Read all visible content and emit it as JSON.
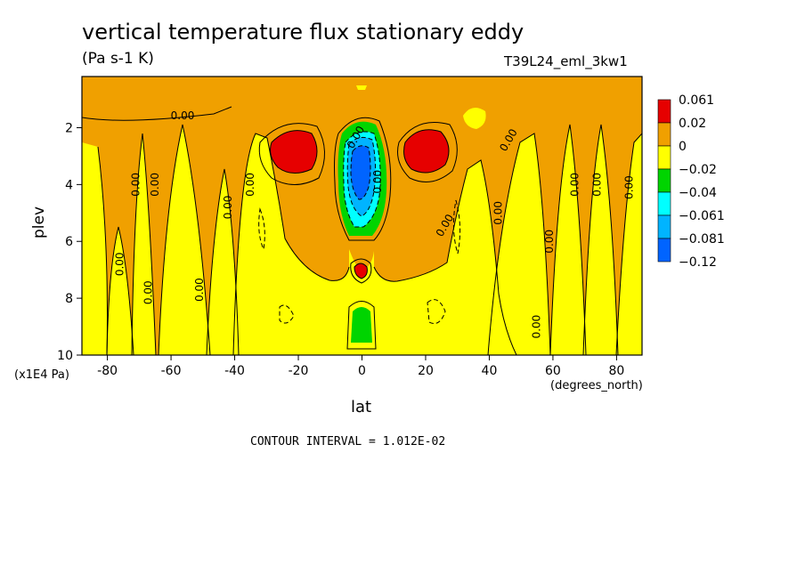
{
  "chart_data": {
    "type": "heatmap",
    "title": "vertical temperature flux stationary eddy",
    "subtitle": "(Pa s-1 K)",
    "run_id": "T39L24_eml_3kw1",
    "xlabel": "lat",
    "ylabel": "plev",
    "x_units": "(degrees_north)",
    "y_scale_note": "(x1E4 Pa)",
    "xlim": [
      -88,
      88
    ],
    "ylim": [
      10,
      0.2
    ],
    "x_ticks": [
      -80,
      -60,
      -40,
      -20,
      0,
      20,
      40,
      60,
      80
    ],
    "x_tick_labels": [
      "-80",
      "-60",
      "-40",
      "-20",
      "0",
      "20",
      "40",
      "60",
      "80"
    ],
    "y_ticks": [
      2,
      4,
      6,
      8,
      10
    ],
    "y_tick_labels": [
      "2",
      "4",
      "6",
      "8",
      "10"
    ],
    "contour_interval": "CONTOUR INTERVAL = 1.012E-02",
    "contour_labels": [
      "0.00"
    ],
    "levels": [
      {
        "label": "0.061",
        "color": "#e60000"
      },
      {
        "label": "0.02",
        "color": "#f0a000"
      },
      {
        "label": "0",
        "color": "#ffff00"
      },
      {
        "label": "−0.02",
        "color": "#00d400"
      },
      {
        "label": "−0.04",
        "color": "#00ffff"
      },
      {
        "label": "−0.061",
        "color": "#00b4ff"
      },
      {
        "label": "−0.081",
        "color": "#0064ff"
      },
      {
        "label": "−0.12",
        "color": "#000000"
      }
    ],
    "features": [
      {
        "type": "max",
        "lat": -20,
        "plev": 2.7,
        "value": 0.061
      },
      {
        "type": "max",
        "lat": 22,
        "plev": 2.7,
        "value": 0.061
      },
      {
        "type": "max",
        "lat": 0,
        "plev": 6.9,
        "value": 0.061
      },
      {
        "type": "min",
        "lat": 0,
        "plev": 3.3,
        "value": -0.12
      },
      {
        "type": "min",
        "lat": 0,
        "plev": 9.0,
        "value": -0.04
      }
    ],
    "grid": false,
    "legend_position": "right"
  }
}
